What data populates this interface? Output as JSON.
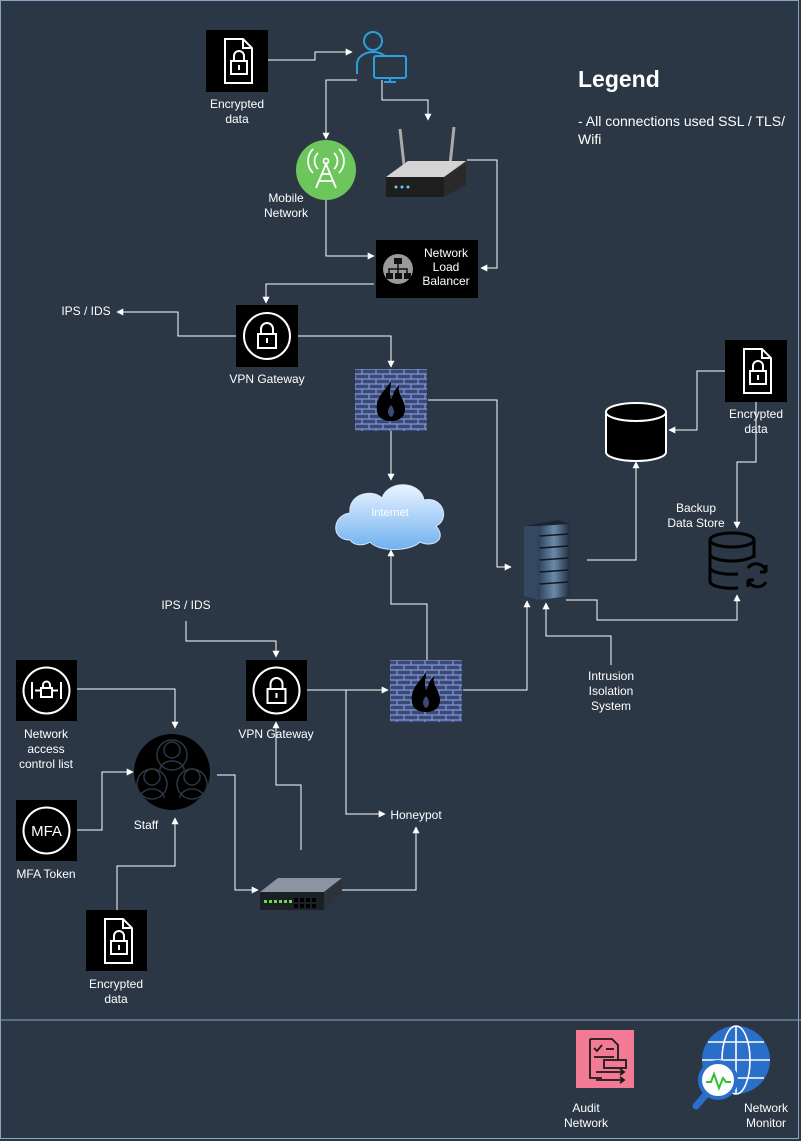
{
  "legend": {
    "title": "Legend",
    "text": "- All connections used SSL / TLS/ Wifi"
  },
  "labels": {
    "encrypted_top": "Encrypted\ndata",
    "mobile_network": "Mobile\nNetwork",
    "network_load_balancer": "Network\nLoad\nBalancer",
    "ips_ids_top": "IPS / IDS",
    "vpn_gateway_top": "VPN Gateway",
    "encrypted_right": "Encrypted\ndata",
    "internet": "Internet",
    "backup_data_store": "Backup\nData Store",
    "ips_ids_bottom": "IPS / IDS",
    "network_acl": "Network\naccess\ncontrol list",
    "vpn_gateway_bottom": "VPN Gateway",
    "intrusion_isolation": "Intrusion\nIsolation\nSystem",
    "staff": "Staff",
    "mfa_token": "MFA Token",
    "honeypot": "Honeypot",
    "encrypted_bottom": "Encrypted\ndata",
    "audit_network": "Audit\nNetwork",
    "network_monitor": "Network\nMonitor"
  },
  "icons": {
    "mfa_text": "MFA"
  },
  "colors": {
    "background": "#2b3745",
    "connector": "#ffffff",
    "mobile_green": "#6cc65b",
    "audit_pink": "#f27a94",
    "monitor_blue": "#2a6fc9",
    "firewall_blue": "#6e84c8",
    "user_blue": "#2c9fdc"
  }
}
